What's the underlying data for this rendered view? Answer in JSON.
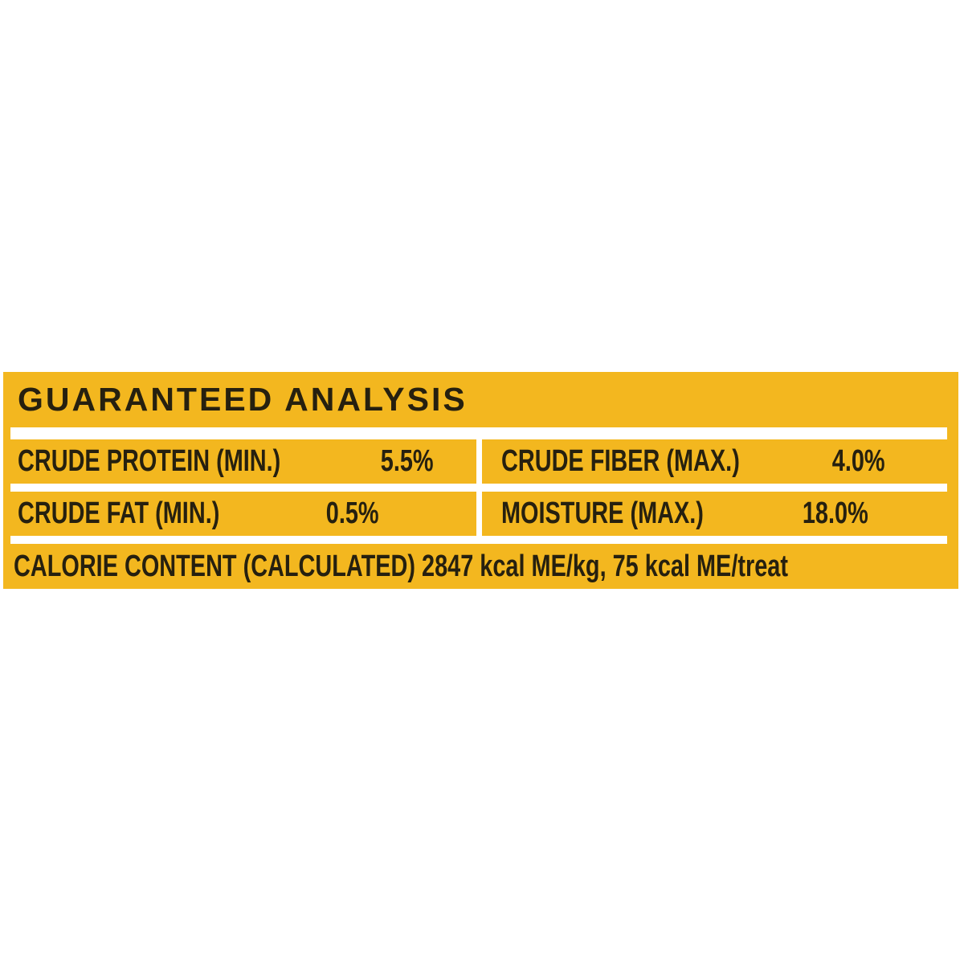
{
  "label": {
    "title": "GUARANTEED ANALYSIS",
    "table": {
      "left_column": [
        {
          "name": "CRUDE PROTEIN (MIN.)",
          "value": "5.5%"
        },
        {
          "name": "CRUDE FAT (MIN.)",
          "value": "0.5%"
        }
      ],
      "right_column": [
        {
          "name": "CRUDE FIBER (MAX.)",
          "value": "4.0%"
        },
        {
          "name": "MOISTURE (MAX.)",
          "value": "18.0%"
        }
      ]
    },
    "calorie_content": "CALORIE CONTENT (CALCULATED) 2847 kcal ME/kg, 75 kcal ME/treat",
    "colors": {
      "background": "#F3B71F",
      "text": "#26200F",
      "divider": "#FFFFFF"
    }
  }
}
